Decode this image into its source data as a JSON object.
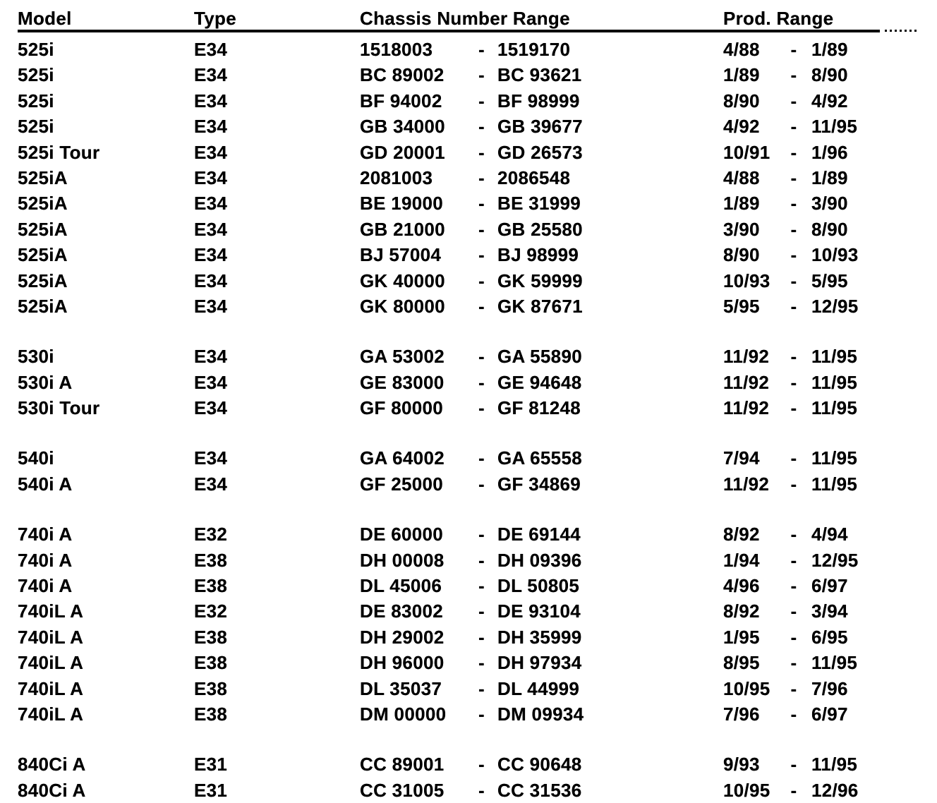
{
  "document": {
    "title": "Chassis number range table",
    "columns": {
      "model": "Model",
      "type": "Type",
      "chassis": "Chassis Number Range",
      "prod": "Prod. Range"
    },
    "range_separator": "-",
    "groups": [
      {
        "rows": [
          {
            "model": "525i",
            "type": "E34",
            "chassis_from": "1518003",
            "chassis_to": "1519170",
            "prod_from": "4/88",
            "prod_to": "1/89"
          },
          {
            "model": "525i",
            "type": "E34",
            "chassis_from": "BC 89002",
            "chassis_to": "BC 93621",
            "prod_from": "1/89",
            "prod_to": "8/90"
          },
          {
            "model": "525i",
            "type": "E34",
            "chassis_from": "BF 94002",
            "chassis_to": "BF 98999",
            "prod_from": "8/90",
            "prod_to": "4/92"
          },
          {
            "model": "525i",
            "type": "E34",
            "chassis_from": "GB 34000",
            "chassis_to": "GB 39677",
            "prod_from": "4/92",
            "prod_to": "11/95"
          },
          {
            "model": "525i Tour",
            "type": "E34",
            "chassis_from": "GD 20001",
            "chassis_to": "GD 26573",
            "prod_from": "10/91",
            "prod_to": "1/96"
          },
          {
            "model": "525iA",
            "type": "E34",
            "chassis_from": "2081003",
            "chassis_to": "2086548",
            "prod_from": "4/88",
            "prod_to": "1/89"
          },
          {
            "model": "525iA",
            "type": "E34",
            "chassis_from": "BE 19000",
            "chassis_to": "BE 31999",
            "prod_from": "1/89",
            "prod_to": "3/90"
          },
          {
            "model": "525iA",
            "type": "E34",
            "chassis_from": "GB 21000",
            "chassis_to": "GB 25580",
            "prod_from": "3/90",
            "prod_to": "8/90"
          },
          {
            "model": "525iA",
            "type": "E34",
            "chassis_from": "BJ 57004",
            "chassis_to": "BJ 98999",
            "prod_from": "8/90",
            "prod_to": "10/93"
          },
          {
            "model": "525iA",
            "type": "E34",
            "chassis_from": "GK 40000",
            "chassis_to": "GK 59999",
            "prod_from": "10/93",
            "prod_to": "5/95"
          },
          {
            "model": "525iA",
            "type": "E34",
            "chassis_from": "GK 80000",
            "chassis_to": "GK 87671",
            "prod_from": "5/95",
            "prod_to": "12/95"
          }
        ]
      },
      {
        "rows": [
          {
            "model": "530i",
            "type": "E34",
            "chassis_from": "GA 53002",
            "chassis_to": "GA 55890",
            "prod_from": "11/92",
            "prod_to": "11/95"
          },
          {
            "model": "530i A",
            "type": "E34",
            "chassis_from": "GE 83000",
            "chassis_to": "GE 94648",
            "prod_from": "11/92",
            "prod_to": "11/95"
          },
          {
            "model": "530i Tour",
            "type": "E34",
            "chassis_from": "GF 80000",
            "chassis_to": "GF 81248",
            "prod_from": "11/92",
            "prod_to": "11/95"
          }
        ]
      },
      {
        "rows": [
          {
            "model": "540i",
            "type": "E34",
            "chassis_from": "GA 64002",
            "chassis_to": "GA 65558",
            "prod_from": "7/94",
            "prod_to": "11/95"
          },
          {
            "model": "540i A",
            "type": "E34",
            "chassis_from": "GF 25000",
            "chassis_to": "GF 34869",
            "prod_from": "11/92",
            "prod_to": "11/95"
          }
        ]
      },
      {
        "rows": [
          {
            "model": "740i A",
            "type": "E32",
            "chassis_from": "DE 60000",
            "chassis_to": "DE 69144",
            "prod_from": "8/92",
            "prod_to": "4/94"
          },
          {
            "model": "740i A",
            "type": "E38",
            "chassis_from": "DH 00008",
            "chassis_to": "DH 09396",
            "prod_from": "1/94",
            "prod_to": "12/95"
          },
          {
            "model": "740i A",
            "type": "E38",
            "chassis_from": "DL 45006",
            "chassis_to": "DL 50805",
            "prod_from": "4/96",
            "prod_to": "6/97"
          },
          {
            "model": "740iL A",
            "type": "E32",
            "chassis_from": "DE 83002",
            "chassis_to": "DE 93104",
            "prod_from": "8/92",
            "prod_to": "3/94"
          },
          {
            "model": "740iL A",
            "type": "E38",
            "chassis_from": "DH 29002",
            "chassis_to": "DH 35999",
            "prod_from": "1/95",
            "prod_to": "6/95"
          },
          {
            "model": "740iL A",
            "type": "E38",
            "chassis_from": "DH 96000",
            "chassis_to": "DH 97934",
            "prod_from": "8/95",
            "prod_to": "11/95"
          },
          {
            "model": "740iL A",
            "type": "E38",
            "chassis_from": "DL 35037",
            "chassis_to": "DL 44999",
            "prod_from": "10/95",
            "prod_to": "7/96"
          },
          {
            "model": "740iL A",
            "type": "E38",
            "chassis_from": "DM 00000",
            "chassis_to": "DM 09934",
            "prod_from": "7/96",
            "prod_to": "6/97"
          }
        ]
      },
      {
        "rows": [
          {
            "model": "840Ci A",
            "type": "E31",
            "chassis_from": "CC 89001",
            "chassis_to": "CC 90648",
            "prod_from": "9/93",
            "prod_to": "11/95"
          },
          {
            "model": "840Ci A",
            "type": "E31",
            "chassis_from": "CC 31005",
            "chassis_to": "CC 31536",
            "prod_from": "10/95",
            "prod_to": "12/96"
          }
        ]
      }
    ]
  }
}
